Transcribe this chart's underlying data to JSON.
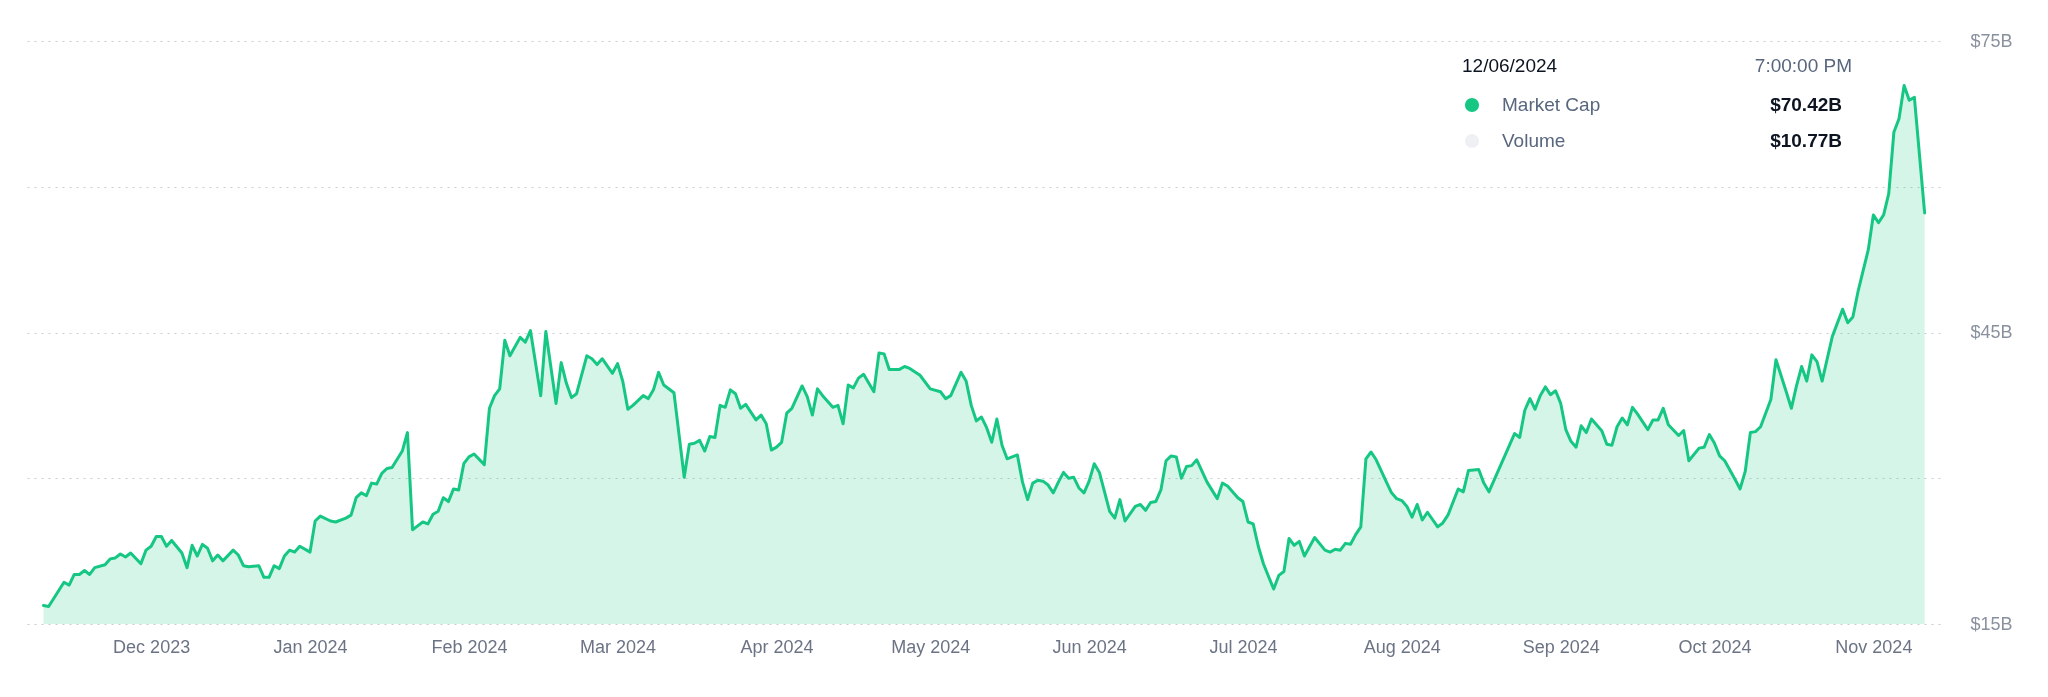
{
  "chart_data": {
    "type": "area",
    "x": [
      "2023-11-10",
      "2023-11-11",
      "2023-11-14",
      "2023-11-15",
      "2023-11-16",
      "2023-11-17",
      "2023-11-18",
      "2023-11-19",
      "2023-11-20",
      "2023-11-22",
      "2023-11-23",
      "2023-11-24",
      "2023-11-25",
      "2023-11-26",
      "2023-11-27",
      "2023-11-29",
      "2023-11-30",
      "2023-12-01",
      "2023-12-02",
      "2023-12-03",
      "2023-12-04",
      "2023-12-05",
      "2023-12-07",
      "2023-12-08",
      "2023-12-09",
      "2023-12-10",
      "2023-12-11",
      "2023-12-12",
      "2023-12-13",
      "2023-12-14",
      "2023-12-15",
      "2023-12-17",
      "2023-12-18",
      "2023-12-19",
      "2023-12-20",
      "2023-12-22",
      "2023-12-23",
      "2023-12-24",
      "2023-12-25",
      "2023-12-26",
      "2023-12-27",
      "2023-12-28",
      "2023-12-29",
      "2023-12-30",
      "2024-01-01",
      "2024-01-02",
      "2024-01-03",
      "2024-01-05",
      "2024-01-06",
      "2024-01-08",
      "2024-01-09",
      "2024-01-10",
      "2024-01-11",
      "2024-01-12",
      "2024-01-13",
      "2024-01-14",
      "2024-01-15",
      "2024-01-16",
      "2024-01-17",
      "2024-01-19",
      "2024-01-20",
      "2024-01-21",
      "2024-01-22",
      "2024-01-23",
      "2024-01-24",
      "2024-01-25",
      "2024-01-26",
      "2024-01-27",
      "2024-01-28",
      "2024-01-29",
      "2024-01-30",
      "2024-01-31",
      "2024-02-01",
      "2024-02-02",
      "2024-02-04",
      "2024-02-05",
      "2024-02-06",
      "2024-02-07",
      "2024-02-08",
      "2024-02-09",
      "2024-02-11",
      "2024-02-12",
      "2024-02-13",
      "2024-02-15",
      "2024-02-16",
      "2024-02-18",
      "2024-02-19",
      "2024-02-20",
      "2024-02-21",
      "2024-02-22",
      "2024-02-24",
      "2024-02-25",
      "2024-02-26",
      "2024-02-27",
      "2024-02-29",
      "2024-03-01",
      "2024-03-02",
      "2024-03-03",
      "2024-03-04",
      "2024-03-06",
      "2024-03-07",
      "2024-03-08",
      "2024-03-09",
      "2024-03-10",
      "2024-03-12",
      "2024-03-14",
      "2024-03-15",
      "2024-03-16",
      "2024-03-17",
      "2024-03-18",
      "2024-03-19",
      "2024-03-20",
      "2024-03-21",
      "2024-03-22",
      "2024-03-23",
      "2024-03-24",
      "2024-03-25",
      "2024-03-26",
      "2024-03-28",
      "2024-03-29",
      "2024-03-30",
      "2024-03-31",
      "2024-04-01",
      "2024-04-02",
      "2024-04-03",
      "2024-04-04",
      "2024-04-06",
      "2024-04-07",
      "2024-04-08",
      "2024-04-09",
      "2024-04-10",
      "2024-04-12",
      "2024-04-13",
      "2024-04-14",
      "2024-04-15",
      "2024-04-16",
      "2024-04-17",
      "2024-04-18",
      "2024-04-20",
      "2024-04-21",
      "2024-04-22",
      "2024-04-23",
      "2024-04-25",
      "2024-04-26",
      "2024-04-27",
      "2024-04-29",
      "2024-05-01",
      "2024-05-03",
      "2024-05-04",
      "2024-05-05",
      "2024-05-07",
      "2024-05-08",
      "2024-05-09",
      "2024-05-10",
      "2024-05-11",
      "2024-05-12",
      "2024-05-13",
      "2024-05-14",
      "2024-05-15",
      "2024-05-16",
      "2024-05-18",
      "2024-05-19",
      "2024-05-20",
      "2024-05-21",
      "2024-05-22",
      "2024-05-23",
      "2024-05-24",
      "2024-05-25",
      "2024-05-26",
      "2024-05-27",
      "2024-05-28",
      "2024-05-29",
      "2024-05-30",
      "2024-05-31",
      "2024-06-01",
      "2024-06-02",
      "2024-06-03",
      "2024-06-05",
      "2024-06-06",
      "2024-06-07",
      "2024-06-08",
      "2024-06-10",
      "2024-06-11",
      "2024-06-12",
      "2024-06-13",
      "2024-06-14",
      "2024-06-15",
      "2024-06-16",
      "2024-06-17",
      "2024-06-18",
      "2024-06-19",
      "2024-06-20",
      "2024-06-21",
      "2024-06-22",
      "2024-06-24",
      "2024-06-26",
      "2024-06-27",
      "2024-06-28",
      "2024-06-30",
      "2024-07-01",
      "2024-07-02",
      "2024-07-03",
      "2024-07-04",
      "2024-07-05",
      "2024-07-07",
      "2024-07-08",
      "2024-07-09",
      "2024-07-10",
      "2024-07-11",
      "2024-07-12",
      "2024-07-13",
      "2024-07-15",
      "2024-07-17",
      "2024-07-18",
      "2024-07-19",
      "2024-07-20",
      "2024-07-21",
      "2024-07-22",
      "2024-07-23",
      "2024-07-24",
      "2024-07-25",
      "2024-07-26",
      "2024-07-27",
      "2024-07-29",
      "2024-07-30",
      "2024-07-31",
      "2024-08-01",
      "2024-08-02",
      "2024-08-03",
      "2024-08-04",
      "2024-08-05",
      "2024-08-06",
      "2024-08-08",
      "2024-08-09",
      "2024-08-10",
      "2024-08-12",
      "2024-08-13",
      "2024-08-14",
      "2024-08-16",
      "2024-08-17",
      "2024-08-18",
      "2024-08-23",
      "2024-08-24",
      "2024-08-25",
      "2024-08-26",
      "2024-08-27",
      "2024-08-28",
      "2024-08-29",
      "2024-08-30",
      "2024-08-31",
      "2024-09-01",
      "2024-09-02",
      "2024-09-03",
      "2024-09-04",
      "2024-09-05",
      "2024-09-06",
      "2024-09-07",
      "2024-09-09",
      "2024-09-10",
      "2024-09-11",
      "2024-09-12",
      "2024-09-13",
      "2024-09-14",
      "2024-09-15",
      "2024-09-16",
      "2024-09-18",
      "2024-09-19",
      "2024-09-20",
      "2024-09-21",
      "2024-09-22",
      "2024-09-24",
      "2024-09-25",
      "2024-09-26",
      "2024-09-28",
      "2024-09-29",
      "2024-09-30",
      "2024-10-01",
      "2024-10-02",
      "2024-10-03",
      "2024-10-05",
      "2024-10-06",
      "2024-10-07",
      "2024-10-08",
      "2024-10-09",
      "2024-10-10",
      "2024-10-12",
      "2024-10-13",
      "2024-10-15",
      "2024-10-16",
      "2024-10-17",
      "2024-10-18",
      "2024-10-19",
      "2024-10-20",
      "2024-10-21",
      "2024-10-22",
      "2024-10-24",
      "2024-10-26",
      "2024-10-27",
      "2024-10-28",
      "2024-10-29",
      "2024-10-31",
      "2024-11-01",
      "2024-11-02",
      "2024-11-03",
      "2024-11-04",
      "2024-11-05",
      "2024-11-06",
      "2024-11-07",
      "2024-11-08",
      "2024-11-09",
      "2024-11-11"
    ],
    "series": [
      {
        "name": "Market Cap",
        "color": "#16c784",
        "values": [
          16.9,
          16.8,
          19.3,
          19.0,
          20.1,
          20.1,
          20.5,
          20.1,
          20.8,
          21.1,
          21.7,
          21.8,
          22.2,
          21.9,
          22.3,
          21.2,
          22.6,
          23.0,
          24.0,
          24.0,
          23.0,
          23.6,
          22.3,
          20.8,
          23.1,
          22.0,
          23.2,
          22.8,
          21.5,
          22.1,
          21.5,
          22.6,
          22.1,
          21.0,
          20.9,
          21.0,
          19.8,
          19.8,
          21.0,
          20.7,
          22.0,
          22.6,
          22.4,
          23.0,
          22.4,
          25.6,
          26.1,
          25.6,
          25.5,
          25.9,
          26.2,
          28.0,
          28.5,
          28.2,
          29.5,
          29.4,
          30.5,
          31.0,
          31.1,
          32.8,
          34.7,
          24.7,
          25.1,
          25.5,
          25.3,
          26.3,
          26.6,
          28.0,
          27.6,
          28.9,
          28.8,
          31.5,
          32.2,
          32.5,
          31.4,
          37.2,
          38.5,
          39.2,
          44.2,
          42.6,
          44.5,
          44.0,
          45.2,
          38.5,
          45.1,
          37.7,
          41.9,
          39.8,
          38.3,
          38.7,
          42.6,
          42.3,
          41.7,
          42.3,
          40.8,
          41.8,
          40.0,
          37.1,
          37.5,
          38.5,
          38.2,
          39.1,
          40.9,
          39.6,
          38.8,
          30.1,
          33.5,
          33.6,
          33.9,
          32.8,
          34.3,
          34.2,
          37.5,
          37.3,
          39.1,
          38.7,
          37.2,
          37.6,
          36.0,
          36.5,
          35.6,
          32.9,
          33.2,
          33.7,
          36.7,
          37.2,
          39.5,
          38.4,
          36.5,
          39.2,
          38.5,
          37.3,
          37.5,
          35.6,
          39.6,
          39.3,
          40.3,
          40.7,
          38.9,
          42.9,
          42.8,
          41.2,
          41.2,
          41.5,
          41.3,
          40.6,
          39.2,
          38.9,
          38.2,
          38.5,
          40.9,
          40.0,
          37.5,
          35.9,
          36.3,
          35.2,
          33.7,
          36.1,
          33.4,
          32.0,
          32.4,
          29.6,
          27.8,
          29.5,
          29.8,
          29.7,
          29.3,
          28.5,
          29.6,
          30.6,
          30.0,
          30.1,
          29.0,
          28.5,
          29.7,
          31.5,
          30.6,
          26.6,
          25.9,
          27.8,
          25.6,
          27.1,
          27.3,
          26.7,
          27.5,
          27.6,
          28.8,
          31.8,
          32.3,
          32.2,
          30.0,
          31.2,
          31.3,
          31.9,
          29.6,
          27.9,
          29.5,
          29.2,
          28.0,
          27.6,
          25.5,
          25.3,
          23.0,
          21.2,
          18.6,
          20.0,
          20.4,
          23.8,
          23.1,
          23.5,
          22.0,
          23.9,
          22.6,
          22.4,
          22.7,
          22.6,
          23.3,
          23.2,
          24.2,
          25.0,
          32.0,
          32.7,
          31.9,
          29.6,
          28.5,
          27.9,
          27.7,
          27.1,
          26.0,
          27.3,
          25.7,
          26.5,
          25.0,
          25.4,
          26.2,
          28.9,
          28.6,
          30.8,
          30.9,
          29.5,
          28.6,
          34.6,
          34.2,
          37.0,
          38.2,
          37.1,
          38.5,
          39.4,
          38.6,
          39.0,
          37.7,
          35.0,
          33.8,
          33.2,
          35.4,
          34.7,
          36.1,
          34.9,
          33.5,
          33.4,
          35.3,
          36.2,
          35.5,
          37.3,
          36.6,
          35.0,
          36.0,
          36.0,
          37.2,
          35.5,
          34.4,
          34.9,
          31.8,
          33.1,
          33.2,
          34.5,
          33.6,
          32.3,
          31.8,
          29.9,
          28.9,
          30.7,
          34.7,
          34.8,
          35.3,
          38.1,
          42.2,
          38.9,
          37.2,
          39.5,
          41.5,
          40.0,
          42.7,
          42.0,
          40.0,
          44.6,
          47.4,
          46.0,
          46.6,
          49.2,
          53.5,
          57.1,
          56.3,
          57.1,
          59.3,
          65.6,
          67.0,
          70.42,
          68.9,
          69.2,
          57.3
        ]
      }
    ],
    "xlim": [
      "2023-11-06",
      "2024-11-14"
    ],
    "xticks": [
      {
        "value": "2023-12-01",
        "label": "Dec 2023"
      },
      {
        "value": "2024-01-01",
        "label": "Jan 2024"
      },
      {
        "value": "2024-02-01",
        "label": "Feb 2024"
      },
      {
        "value": "2024-03-01",
        "label": "Mar 2024"
      },
      {
        "value": "2024-04-01",
        "label": "Apr 2024"
      },
      {
        "value": "2024-05-01",
        "label": "May 2024"
      },
      {
        "value": "2024-06-01",
        "label": "Jun 2024"
      },
      {
        "value": "2024-07-01",
        "label": "Jul 2024"
      },
      {
        "value": "2024-08-01",
        "label": "Aug 2024"
      },
      {
        "value": "2024-09-01",
        "label": "Sep 2024"
      },
      {
        "value": "2024-10-01",
        "label": "Oct 2024"
      },
      {
        "value": "2024-11-01",
        "label": "Nov 2024"
      }
    ],
    "ylim": [
      15,
      75
    ],
    "yticks": [
      {
        "value": 15,
        "label": "$15B"
      },
      {
        "value": 30,
        "label": null
      },
      {
        "value": 45,
        "label": "$45B"
      },
      {
        "value": 60,
        "label": null
      },
      {
        "value": 75,
        "label": "$75B"
      }
    ],
    "grid": "y",
    "annotations": [
      "12/06/2024",
      "7:00:00 PM",
      "$70.42B",
      "Volume",
      "$10.77B"
    ]
  }
}
